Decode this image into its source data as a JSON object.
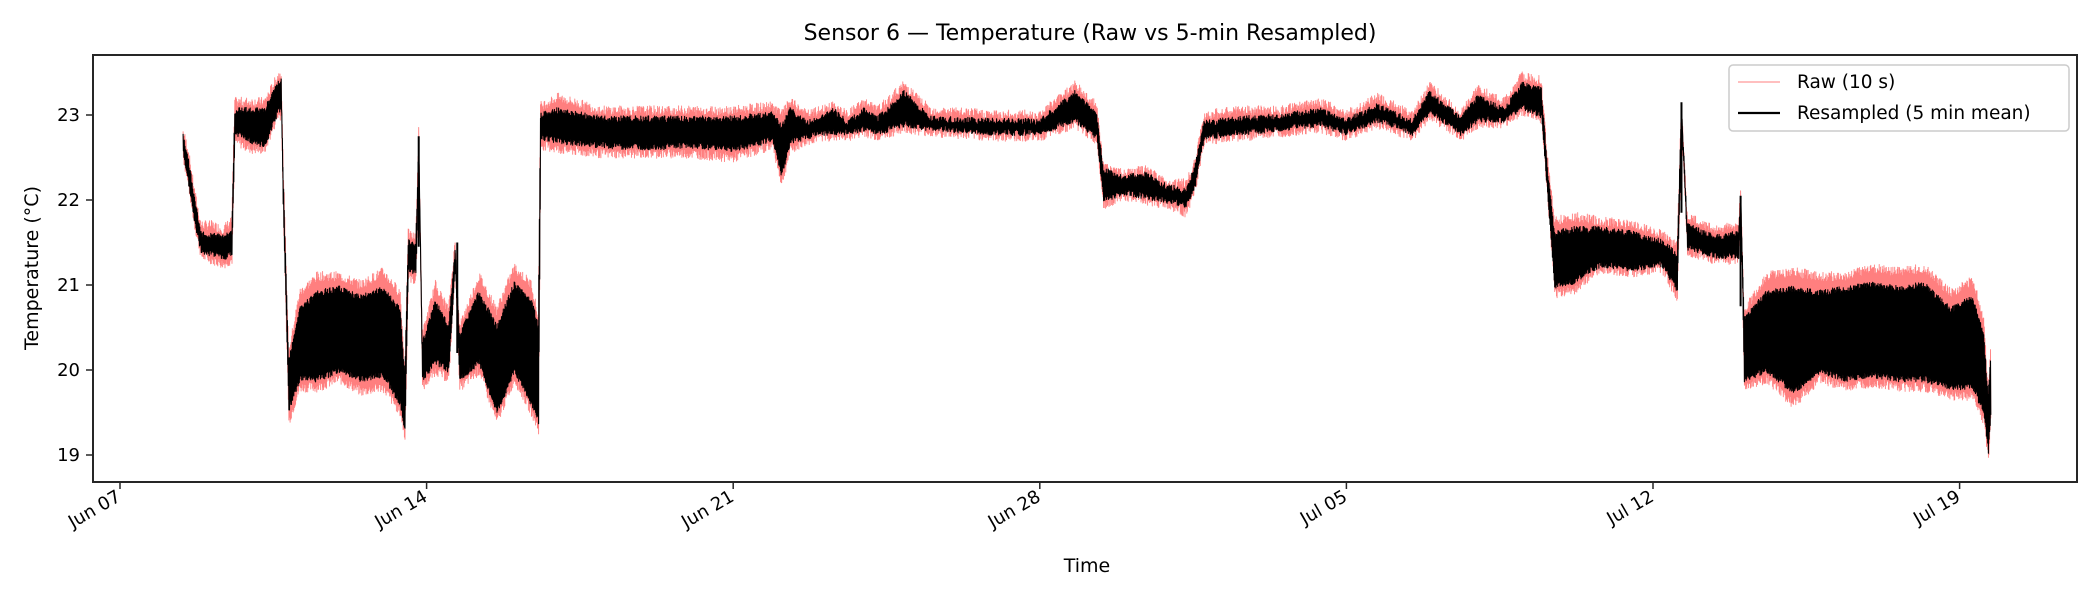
{
  "chart_data": {
    "type": "line",
    "title": "Sensor 6 — Temperature (Raw vs 5-min Resampled)",
    "xlabel": "Time",
    "ylabel": "Temperature (°C)",
    "x_ticks": [
      "Jun 07",
      "Jun 14",
      "Jun 21",
      "Jun 28",
      "Jul 05",
      "Jul 12",
      "Jul 19"
    ],
    "y_ticks": [
      19,
      20,
      21,
      22,
      23
    ],
    "xlim_days_from_jun07": [
      -0.6,
      44.7
    ],
    "ylim": [
      18.7,
      23.7
    ],
    "grid": false,
    "legend_position": "upper right",
    "colors": {
      "raw": "#ff7f7f",
      "resampled": "#000000",
      "axes": "#262626"
    },
    "series": [
      {
        "name": "Raw (10 s)",
        "sampling": "10 s",
        "style": "thin light red line"
      },
      {
        "name": "Resampled (5 min mean)",
        "sampling": "5 min",
        "style": "black line"
      }
    ],
    "envelope_columns": [
      "day_from_jun07",
      "raw_min",
      "raw_max",
      "resampled_min",
      "resampled_max"
    ],
    "envelope": [
      [
        1.44,
        22.5,
        22.8,
        22.55,
        22.75
      ],
      [
        1.55,
        22.2,
        22.6,
        22.25,
        22.5
      ],
      [
        1.7,
        21.7,
        22.1,
        21.75,
        22.0
      ],
      [
        1.85,
        21.35,
        21.7,
        21.4,
        21.6
      ],
      [
        2.1,
        21.3,
        21.7,
        21.38,
        21.58
      ],
      [
        2.35,
        21.25,
        21.65,
        21.33,
        21.55
      ],
      [
        2.55,
        21.3,
        21.75,
        21.38,
        21.6
      ],
      [
        2.62,
        22.7,
        23.15,
        22.8,
        23.05
      ],
      [
        3.0,
        22.6,
        23.15,
        22.7,
        23.05
      ],
      [
        3.3,
        22.6,
        23.15,
        22.65,
        23.05
      ],
      [
        3.6,
        23.0,
        23.45,
        23.05,
        23.35
      ],
      [
        3.68,
        23.0,
        23.5,
        23.1,
        23.4
      ],
      [
        3.72,
        21.9,
        22.55,
        21.95,
        22.35
      ],
      [
        3.85,
        19.4,
        20.2,
        19.55,
        20.1
      ],
      [
        4.1,
        19.8,
        20.9,
        19.9,
        20.7
      ],
      [
        4.5,
        19.8,
        21.1,
        19.9,
        20.9
      ],
      [
        5.0,
        19.9,
        21.1,
        20.0,
        20.95
      ],
      [
        5.5,
        19.75,
        21.0,
        19.9,
        20.85
      ],
      [
        6.0,
        19.8,
        21.15,
        19.95,
        20.95
      ],
      [
        6.4,
        19.5,
        20.9,
        19.6,
        20.7
      ],
      [
        6.5,
        19.2,
        20.0,
        19.3,
        19.9
      ],
      [
        6.58,
        21.1,
        21.6,
        21.2,
        21.5
      ],
      [
        6.75,
        21.05,
        21.55,
        21.15,
        21.45
      ],
      [
        6.82,
        22.4,
        22.8,
        22.45,
        22.65
      ],
      [
        6.9,
        19.8,
        20.4,
        19.9,
        20.3
      ],
      [
        7.2,
        20.0,
        21.0,
        20.1,
        20.8
      ],
      [
        7.5,
        19.9,
        20.7,
        20.0,
        20.5
      ],
      [
        7.65,
        21.2,
        21.5,
        21.25,
        21.4
      ],
      [
        7.75,
        19.8,
        20.5,
        19.9,
        20.4
      ],
      [
        8.2,
        20.0,
        21.1,
        20.1,
        20.9
      ],
      [
        8.6,
        19.4,
        20.7,
        19.5,
        20.5
      ],
      [
        9.0,
        19.9,
        21.2,
        20.0,
        21.0
      ],
      [
        9.4,
        19.5,
        21.0,
        19.6,
        20.8
      ],
      [
        9.55,
        19.3,
        20.6,
        19.4,
        20.5
      ],
      [
        9.6,
        22.65,
        23.1,
        22.75,
        23.0
      ],
      [
        10.0,
        22.6,
        23.2,
        22.7,
        23.05
      ],
      [
        11.0,
        22.55,
        23.05,
        22.65,
        22.95
      ],
      [
        12.0,
        22.55,
        23.05,
        22.62,
        22.95
      ],
      [
        13.0,
        22.55,
        23.05,
        22.65,
        22.95
      ],
      [
        14.0,
        22.5,
        23.05,
        22.6,
        22.95
      ],
      [
        14.9,
        22.65,
        23.1,
        22.72,
        23.0
      ],
      [
        15.1,
        22.2,
        23.0,
        22.3,
        22.85
      ],
      [
        15.3,
        22.6,
        23.15,
        22.7,
        23.05
      ],
      [
        15.7,
        22.7,
        23.0,
        22.75,
        22.9
      ],
      [
        16.0,
        22.75,
        23.05,
        22.8,
        22.95
      ],
      [
        16.3,
        22.75,
        23.1,
        22.8,
        23.05
      ],
      [
        16.6,
        22.75,
        23.0,
        22.8,
        22.9
      ],
      [
        17.0,
        22.8,
        23.15,
        22.85,
        23.05
      ],
      [
        17.3,
        22.75,
        23.05,
        22.8,
        22.95
      ],
      [
        17.9,
        22.85,
        23.35,
        22.9,
        23.25
      ],
      [
        18.5,
        22.8,
        23.05,
        22.85,
        22.95
      ],
      [
        20.0,
        22.75,
        23.0,
        22.8,
        22.92
      ],
      [
        21.0,
        22.75,
        23.0,
        22.8,
        22.92
      ],
      [
        21.8,
        22.9,
        23.35,
        22.95,
        23.25
      ],
      [
        22.3,
        22.7,
        23.1,
        22.75,
        23.0
      ],
      [
        22.45,
        21.95,
        22.4,
        22.0,
        22.35
      ],
      [
        22.9,
        22.05,
        22.3,
        22.1,
        22.25
      ],
      [
        23.4,
        22.0,
        22.35,
        22.05,
        22.3
      ],
      [
        23.9,
        21.95,
        22.2,
        22.0,
        22.15
      ],
      [
        24.35,
        21.85,
        22.2,
        21.95,
        22.1
      ],
      [
        24.55,
        22.15,
        22.45,
        22.2,
        22.4
      ],
      [
        24.75,
        22.7,
        23.0,
        22.75,
        22.9
      ],
      [
        25.6,
        22.75,
        23.05,
        22.8,
        22.95
      ],
      [
        26.5,
        22.8,
        23.05,
        22.85,
        22.98
      ],
      [
        27.4,
        22.85,
        23.15,
        22.9,
        23.05
      ],
      [
        28.0,
        22.75,
        23.0,
        22.8,
        22.92
      ],
      [
        28.7,
        22.9,
        23.2,
        22.95,
        23.1
      ],
      [
        29.5,
        22.75,
        23.0,
        22.8,
        22.92
      ],
      [
        29.9,
        23.0,
        23.35,
        23.05,
        23.25
      ],
      [
        30.6,
        22.75,
        23.0,
        22.8,
        22.95
      ],
      [
        31.0,
        22.9,
        23.3,
        22.95,
        23.2
      ],
      [
        31.6,
        22.9,
        23.15,
        22.95,
        23.05
      ],
      [
        32.0,
        23.05,
        23.45,
        23.1,
        23.35
      ],
      [
        32.45,
        22.95,
        23.4,
        23.0,
        23.3
      ],
      [
        32.6,
        21.95,
        22.45,
        22.0,
        22.3
      ],
      [
        32.75,
        20.9,
        21.75,
        21.0,
        21.6
      ],
      [
        33.2,
        20.95,
        21.8,
        21.05,
        21.65
      ],
      [
        33.8,
        21.2,
        21.75,
        21.25,
        21.65
      ],
      [
        34.5,
        21.15,
        21.7,
        21.2,
        21.6
      ],
      [
        35.2,
        21.2,
        21.6,
        21.25,
        21.5
      ],
      [
        35.55,
        20.85,
        21.45,
        20.95,
        21.35
      ],
      [
        35.65,
        22.9,
        23.15,
        22.95,
        23.1
      ],
      [
        35.78,
        21.4,
        21.8,
        21.45,
        21.7
      ],
      [
        36.4,
        21.3,
        21.65,
        21.35,
        21.55
      ],
      [
        36.95,
        21.3,
        21.7,
        21.35,
        21.6
      ],
      [
        37.0,
        21.9,
        22.1,
        21.95,
        22.05
      ],
      [
        37.08,
        19.8,
        20.7,
        19.9,
        20.6
      ],
      [
        37.6,
        19.9,
        21.1,
        20.0,
        20.9
      ],
      [
        38.2,
        19.6,
        21.15,
        19.75,
        20.95
      ],
      [
        38.8,
        19.9,
        21.1,
        20.0,
        20.9
      ],
      [
        39.4,
        19.8,
        21.1,
        19.9,
        20.95
      ],
      [
        40.0,
        19.85,
        21.2,
        19.95,
        21.0
      ],
      [
        40.6,
        19.8,
        21.15,
        19.9,
        20.95
      ],
      [
        41.2,
        19.8,
        21.2,
        19.9,
        21.0
      ],
      [
        41.8,
        19.7,
        20.9,
        19.8,
        20.7
      ],
      [
        42.3,
        19.7,
        21.05,
        19.8,
        20.85
      ],
      [
        42.55,
        19.4,
        20.6,
        19.5,
        20.4
      ],
      [
        42.65,
        18.95,
        19.8,
        19.05,
        19.7
      ],
      [
        42.72,
        19.5,
        20.3,
        19.55,
        20.2
      ]
    ],
    "notable_spikes": [
      {
        "day_from_jun07": 6.82,
        "value": 22.75
      },
      {
        "day_from_jun07": 7.7,
        "value": 21.5
      },
      {
        "day_from_jun07": 35.65,
        "value": 23.15
      },
      {
        "day_from_jun07": 37.0,
        "value": 22.05
      }
    ]
  },
  "legend": {
    "items": [
      {
        "label": "Raw (10 s)",
        "color": "#ff7f7f"
      },
      {
        "label": "Resampled (5 min mean)",
        "color": "#000000"
      }
    ]
  }
}
